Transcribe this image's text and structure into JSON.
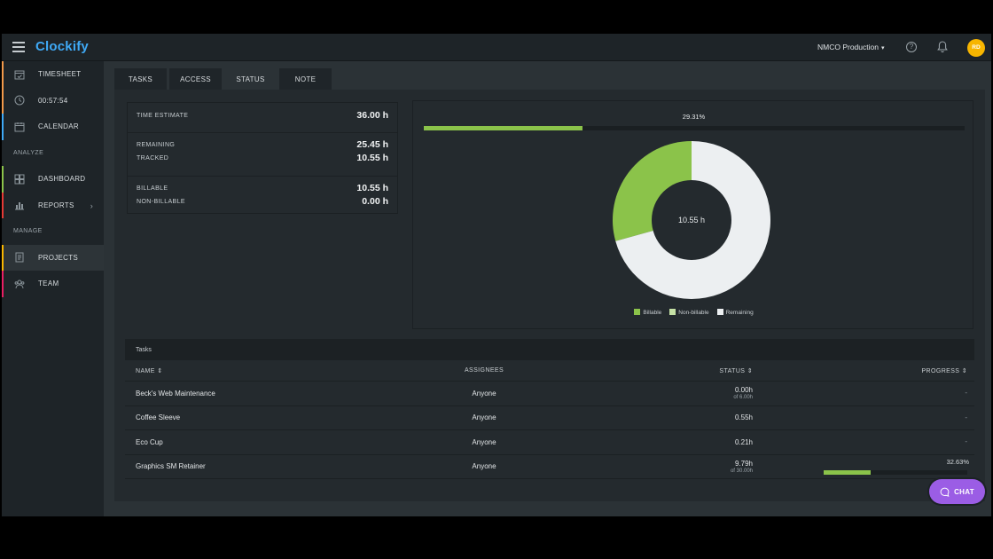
{
  "app": {
    "logo_text": "Clockify",
    "brand_color": "#3fa9f5"
  },
  "header": {
    "workspace": "NMCO Production",
    "avatar_initials": "RD"
  },
  "sidebar": {
    "items": [
      {
        "label": "TIMESHEET",
        "icon": "calendar-check-icon",
        "accent": "#f2994a"
      },
      {
        "label": "00:57:54",
        "icon": "clock-icon",
        "accent": "#f2994a"
      },
      {
        "label": "CALENDAR",
        "icon": "calendar-icon",
        "accent": "#3fa9f5"
      },
      {
        "label": "DASHBOARD",
        "icon": "dashboard-icon",
        "accent": "#8bc34a"
      },
      {
        "label": "REPORTS",
        "icon": "bar-chart-icon",
        "accent": "#e53935"
      },
      {
        "label": "PROJECTS",
        "icon": "document-icon",
        "accent": "#f7b500"
      },
      {
        "label": "TEAM",
        "icon": "team-icon",
        "accent": "#e91e63"
      }
    ],
    "sections": {
      "analyze": "ANALYZE",
      "manage": "MANAGE"
    }
  },
  "tabs": [
    "TASKS",
    "ACCESS",
    "STATUS",
    "NOTE"
  ],
  "active_tab": "STATUS",
  "stats": {
    "time_estimate_label": "TIME ESTIMATE",
    "time_estimate": "36.00 h",
    "remaining_label": "REMAINING",
    "remaining": "25.45 h",
    "tracked_label": "TRACKED",
    "tracked": "10.55 h",
    "billable_label": "BILLABLE",
    "billable": "10.55 h",
    "non_billable_label": "NON-BILLABLE",
    "non_billable": "0.00 h"
  },
  "progress": {
    "label": "29.31%",
    "fraction": 0.2931
  },
  "chart_data": {
    "type": "pie",
    "center_label": "10.55 h",
    "labels": [
      "Billable",
      "Non-billable",
      "Remaining"
    ],
    "values": [
      10.55,
      0.0,
      25.45
    ],
    "colors": [
      "#8bc34a",
      "#c5e1a5",
      "#eceff1"
    ]
  },
  "tasks": {
    "title": "Tasks",
    "columns": {
      "name": "NAME",
      "assignees": "ASSIGNEES",
      "status": "STATUS",
      "progress": "PROGRESS"
    },
    "rows": [
      {
        "name": "Beck's Web Maintenance",
        "assignees": "Anyone",
        "status": "0.00h",
        "status_sub": "of 6.00h",
        "progress": "-"
      },
      {
        "name": "Coffee Sleeve",
        "assignees": "Anyone",
        "status": "0.55h",
        "status_sub": "",
        "progress": "-"
      },
      {
        "name": "Eco Cup",
        "assignees": "Anyone",
        "status": "0.21h",
        "status_sub": "",
        "progress": "-"
      },
      {
        "name": "Graphics SM Retainer",
        "assignees": "Anyone",
        "status": "9.79h",
        "status_sub": "of 30.00h",
        "progress": "32.63%",
        "progress_fraction": 0.3263
      }
    ]
  },
  "chat_label": "CHAT"
}
